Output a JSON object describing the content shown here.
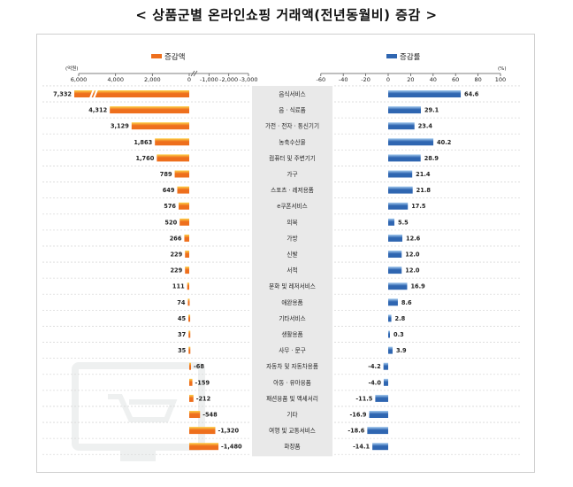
{
  "title": "< 상품군별 온라인쇼핑 거래액(전년동월비) 증감 >",
  "colors": {
    "amount_bar": "#ee6f1d",
    "amount_highlight": "#ffd24a",
    "rate_bar": "#2f66b1",
    "rate_highlight": "#a6ccf0",
    "center_band": "#e9e9e9",
    "row_divider": "#d9d9d9",
    "background_icon": "#eef0f0"
  },
  "chart_data": [
    {
      "type": "bar",
      "orientation": "horizontal",
      "legend": "증감액",
      "unit_label": "(억원)",
      "xlim": [
        6000,
        -3000
      ],
      "ticks": [
        "6,000",
        "4,000",
        "2,000",
        "0",
        "-1,000",
        "-2,000",
        "-3,000"
      ],
      "tick_values": [
        6000,
        4000,
        2000,
        0,
        -1000,
        -2000,
        -3000
      ],
      "categories": [
        "음식서비스",
        "음 · 식료품",
        "가전 · 전자 · 통신기기",
        "농축수산물",
        "컴퓨터 및 주변기기",
        "가구",
        "스포츠 · 레저용품",
        "e쿠폰서비스",
        "의복",
        "가방",
        "신발",
        "서적",
        "문화 및 레저서비스",
        "애완용품",
        "기타서비스",
        "생활용품",
        "사무 · 문구",
        "자동차 및 자동차용품",
        "아동 · 유아용품",
        "패션용품 및 액세서리",
        "기타",
        "여행 및 교통서비스",
        "화장품"
      ],
      "values": [
        7332,
        4312,
        3129,
        1863,
        1760,
        789,
        649,
        576,
        520,
        266,
        229,
        229,
        111,
        74,
        45,
        37,
        35,
        -68,
        -159,
        -212,
        -548,
        -1320,
        -1480
      ],
      "value_labels": [
        "7,332",
        "4,312",
        "3,129",
        "1,863",
        "1,760",
        "789",
        "649",
        "576",
        "520",
        "266",
        "229",
        "229",
        "111",
        "74",
        "45",
        "37",
        "35",
        "-68",
        "-159",
        "-212",
        "-548",
        "-1,320",
        "-1,480"
      ],
      "axis_break": true
    },
    {
      "type": "bar",
      "orientation": "horizontal",
      "legend": "증감률",
      "unit_label": "(%)",
      "xlim": [
        -60,
        100
      ],
      "ticks": [
        "-60",
        "-40",
        "-20",
        "0",
        "20",
        "40",
        "60",
        "80",
        "100"
      ],
      "tick_values": [
        -60,
        -40,
        -20,
        0,
        20,
        40,
        60,
        80,
        100
      ],
      "categories": [
        "음식서비스",
        "음 · 식료품",
        "가전 · 전자 · 통신기기",
        "농축수산물",
        "컴퓨터 및 주변기기",
        "가구",
        "스포츠 · 레저용품",
        "e쿠폰서비스",
        "의복",
        "가방",
        "신발",
        "서적",
        "문화 및 레저서비스",
        "애완용품",
        "기타서비스",
        "생활용품",
        "사무 · 문구",
        "자동차 및 자동차용품",
        "아동 · 유아용품",
        "패션용품 및 액세서리",
        "기타",
        "여행 및 교통서비스",
        "화장품"
      ],
      "values": [
        64.6,
        29.1,
        23.4,
        40.2,
        28.9,
        21.4,
        21.8,
        17.5,
        5.5,
        12.6,
        12.0,
        12.0,
        16.9,
        8.6,
        2.8,
        0.3,
        3.9,
        -4.2,
        -4.0,
        -11.5,
        -16.9,
        -18.6,
        -14.1
      ],
      "value_labels": [
        "64.6",
        "29.1",
        "23.4",
        "40.2",
        "28.9",
        "21.4",
        "21.8",
        "17.5",
        "5.5",
        "12.6",
        "12.0",
        "12.0",
        "16.9",
        "8.6",
        "2.8",
        "0.3",
        "3.9",
        "-4.2",
        "-4.0",
        "-11.5",
        "-16.9",
        "-18.6",
        "-14.1"
      ]
    }
  ]
}
